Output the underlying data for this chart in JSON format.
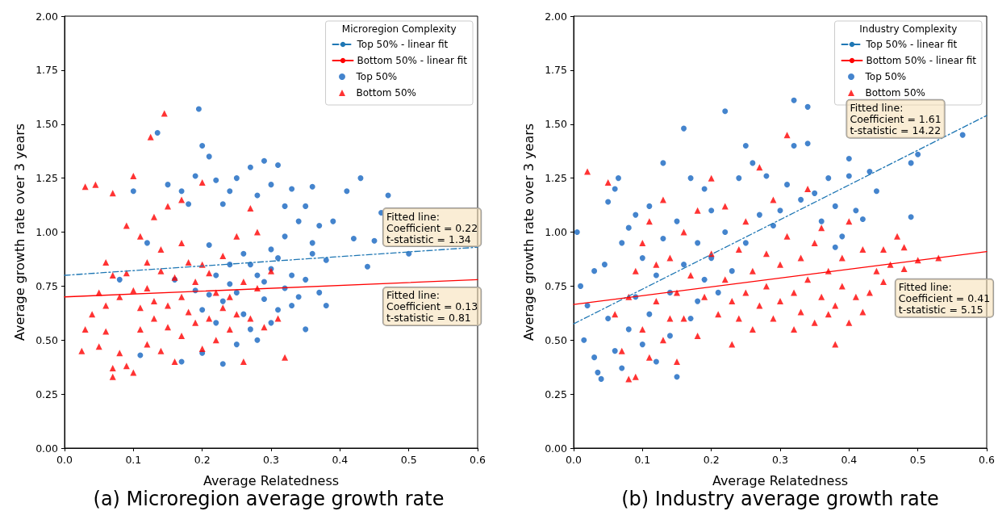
{
  "chart_data": [
    {
      "type": "scatter",
      "title": "(a) Microregion average growth rate",
      "xlabel": "Average Relatedness",
      "ylabel": "Average growth rate over 3 years",
      "legend_title": "Microregion Complexity",
      "legend": "top right",
      "xlim": [
        0,
        0.6
      ],
      "xticks": [
        {
          "value": 0,
          "label": "0.0"
        },
        {
          "value": 0.1,
          "label": "0.1"
        },
        {
          "value": 0.2,
          "label": "0.2"
        },
        {
          "value": 0.3,
          "label": "0.3"
        },
        {
          "value": 0.4,
          "label": "0.4"
        },
        {
          "value": 0.5,
          "label": "0.5"
        },
        {
          "value": 0.6,
          "label": "0.6"
        }
      ],
      "ylim": [
        0,
        2
      ],
      "yticks": [
        {
          "value": 0,
          "label": "0.00"
        },
        {
          "value": 0.25,
          "label": "0.25"
        },
        {
          "value": 0.5,
          "label": "0.50"
        },
        {
          "value": 0.75,
          "label": "0.75"
        },
        {
          "value": 1,
          "label": "1.00"
        },
        {
          "value": 1.25,
          "label": "1.25"
        },
        {
          "value": 1.5,
          "label": "1.50"
        },
        {
          "value": 1.75,
          "label": "1.75"
        },
        {
          "value": 2,
          "label": "2.00"
        }
      ],
      "annotations": [
        "Fitted line:\nCoefficient = 0.22\nt-statistic = 1.34",
        "Fitted line:\nCoefficient = 0.13\nt-statistic = 0.81"
      ],
      "series": [
        {
          "name": "Top 50% - linear fit",
          "type": "line",
          "color": "#1f77b4",
          "line_style": "dashed",
          "marker": "none",
          "x": [
            0,
            0.6
          ],
          "values": [
            0.8,
            0.93
          ]
        },
        {
          "name": "Bottom 50% - linear fit",
          "type": "line",
          "color": "#ff0000",
          "line_style": "solid",
          "marker": "none",
          "x": [
            0,
            0.6
          ],
          "values": [
            0.7,
            0.78
          ]
        },
        {
          "name": "Top 50%",
          "type": "scatter",
          "color": "#1565c0",
          "marker": "circle",
          "x": [
            0.1,
            0.135,
            0.195,
            0.2,
            0.21,
            0.19,
            0.15,
            0.17,
            0.22,
            0.18,
            0.12,
            0.08,
            0.11,
            0.16,
            0.17,
            0.2,
            0.21,
            0.23,
            0.24,
            0.25,
            0.27,
            0.28,
            0.29,
            0.31,
            0.3,
            0.32,
            0.33,
            0.35,
            0.36,
            0.34,
            0.37,
            0.39,
            0.41,
            0.43,
            0.47,
            0.46,
            0.44,
            0.5,
            0.45,
            0.42,
            0.38,
            0.26,
            0.27,
            0.28,
            0.29,
            0.3,
            0.31,
            0.32,
            0.33,
            0.34,
            0.35,
            0.36,
            0.37,
            0.38,
            0.25,
            0.26,
            0.24,
            0.23,
            0.22,
            0.2,
            0.21,
            0.19,
            0.27,
            0.28,
            0.3,
            0.31,
            0.33,
            0.35,
            0.25,
            0.23,
            0.3,
            0.32,
            0.29,
            0.24,
            0.36,
            0.22
          ],
          "values": [
            1.19,
            1.46,
            1.57,
            1.4,
            1.35,
            1.26,
            1.22,
            1.19,
            1.24,
            1.13,
            0.95,
            0.78,
            0.43,
            0.78,
            0.4,
            0.44,
            0.94,
            1.13,
            1.19,
            1.25,
            1.3,
            1.17,
            1.33,
            1.31,
            1.22,
            1.12,
            1.2,
            1.12,
            1.21,
            1.05,
            1.03,
            1.05,
            1.19,
            1.25,
            1.17,
            1.09,
            0.84,
            0.9,
            0.96,
            0.97,
            0.87,
            0.9,
            0.85,
            0.8,
            0.77,
            0.83,
            0.88,
            0.74,
            0.8,
            0.7,
            0.78,
            0.9,
            0.72,
            0.66,
            0.72,
            0.62,
            0.76,
            0.68,
            0.58,
            0.64,
            0.71,
            0.73,
            0.55,
            0.5,
            0.58,
            0.64,
            0.66,
            0.55,
            0.48,
            0.39,
            0.92,
            0.98,
            0.69,
            0.85,
            0.95,
            0.8
          ]
        },
        {
          "name": "Bottom 50%",
          "type": "scatter",
          "color": "#ff0000",
          "marker": "triangle",
          "x": [
            0.03,
            0.045,
            0.07,
            0.1,
            0.145,
            0.125,
            0.09,
            0.11,
            0.13,
            0.15,
            0.17,
            0.2,
            0.14,
            0.12,
            0.06,
            0.07,
            0.09,
            0.1,
            0.05,
            0.04,
            0.06,
            0.08,
            0.12,
            0.14,
            0.16,
            0.18,
            0.2,
            0.22,
            0.24,
            0.26,
            0.28,
            0.3,
            0.27,
            0.28,
            0.25,
            0.23,
            0.06,
            0.05,
            0.07,
            0.08,
            0.07,
            0.09,
            0.1,
            0.11,
            0.12,
            0.13,
            0.15,
            0.14,
            0.16,
            0.17,
            0.18,
            0.19,
            0.2,
            0.21,
            0.22,
            0.23,
            0.24,
            0.25,
            0.26,
            0.27,
            0.29,
            0.31,
            0.32,
            0.03,
            0.025,
            0.11,
            0.13,
            0.15,
            0.17,
            0.19,
            0.21,
            0.17
          ],
          "values": [
            1.21,
            1.22,
            1.18,
            1.26,
            1.55,
            1.44,
            1.03,
            0.98,
            1.07,
            1.12,
            1.15,
            1.23,
            0.92,
            0.86,
            0.86,
            0.8,
            0.81,
            0.73,
            0.72,
            0.62,
            0.66,
            0.7,
            0.74,
            0.82,
            0.79,
            0.86,
            0.85,
            0.72,
            0.7,
            0.77,
            0.74,
            0.82,
            1.11,
            1.0,
            0.98,
            0.89,
            0.54,
            0.47,
            0.37,
            0.44,
            0.33,
            0.38,
            0.35,
            0.55,
            0.48,
            0.6,
            0.56,
            0.45,
            0.4,
            0.52,
            0.63,
            0.58,
            0.46,
            0.6,
            0.5,
            0.65,
            0.55,
            0.62,
            0.4,
            0.6,
            0.56,
            0.6,
            0.42,
            0.55,
            0.45,
            0.65,
            0.68,
            0.66,
            0.7,
            0.77,
            0.81,
            0.95
          ]
        }
      ]
    },
    {
      "type": "scatter",
      "title": "(b) Industry average growth rate",
      "xlabel": "Average Relatedness",
      "ylabel": "Average growth rate over 3 years",
      "legend_title": "Industry Complexity",
      "legend": "top right",
      "xlim": [
        0,
        0.6
      ],
      "xticks": [
        {
          "value": 0,
          "label": "0.0"
        },
        {
          "value": 0.1,
          "label": "0.1"
        },
        {
          "value": 0.2,
          "label": "0.2"
        },
        {
          "value": 0.3,
          "label": "0.3"
        },
        {
          "value": 0.4,
          "label": "0.4"
        },
        {
          "value": 0.5,
          "label": "0.5"
        },
        {
          "value": 0.6,
          "label": "0.6"
        }
      ],
      "ylim": [
        0,
        2
      ],
      "yticks": [
        {
          "value": 0,
          "label": "0.00"
        },
        {
          "value": 0.25,
          "label": "0.25"
        },
        {
          "value": 0.5,
          "label": "0.50"
        },
        {
          "value": 0.75,
          "label": "0.75"
        },
        {
          "value": 1,
          "label": "1.00"
        },
        {
          "value": 1.25,
          "label": "1.25"
        },
        {
          "value": 1.5,
          "label": "1.50"
        },
        {
          "value": 1.75,
          "label": "1.75"
        },
        {
          "value": 2,
          "label": "2.00"
        }
      ],
      "annotations": [
        "Fitted line:\nCoefficient = 1.61\nt-statistic = 14.22",
        "Fitted line:\nCoefficient = 0.41\nt-statistic = 5.15"
      ],
      "series": [
        {
          "name": "Top 50% - linear fit",
          "type": "line",
          "color": "#1f77b4",
          "line_style": "dashed",
          "marker": "none",
          "x": [
            0,
            0.6
          ],
          "values": [
            0.575,
            1.54
          ]
        },
        {
          "name": "Bottom 50% - linear fit",
          "type": "line",
          "color": "#ff0000",
          "line_style": "solid",
          "marker": "none",
          "x": [
            0,
            0.6
          ],
          "values": [
            0.665,
            0.91
          ]
        },
        {
          "name": "Top 50%",
          "type": "scatter",
          "color": "#1565c0",
          "marker": "circle",
          "x": [
            0.005,
            0.01,
            0.015,
            0.02,
            0.03,
            0.03,
            0.035,
            0.04,
            0.045,
            0.05,
            0.05,
            0.06,
            0.06,
            0.065,
            0.07,
            0.07,
            0.08,
            0.08,
            0.09,
            0.09,
            0.1,
            0.1,
            0.11,
            0.11,
            0.12,
            0.12,
            0.13,
            0.13,
            0.14,
            0.14,
            0.15,
            0.15,
            0.16,
            0.16,
            0.17,
            0.17,
            0.18,
            0.18,
            0.19,
            0.19,
            0.2,
            0.2,
            0.21,
            0.22,
            0.22,
            0.23,
            0.24,
            0.25,
            0.25,
            0.26,
            0.27,
            0.28,
            0.29,
            0.3,
            0.31,
            0.32,
            0.32,
            0.33,
            0.34,
            0.34,
            0.35,
            0.36,
            0.37,
            0.38,
            0.38,
            0.4,
            0.4,
            0.41,
            0.43,
            0.44,
            0.49,
            0.5,
            0.49,
            0.565,
            0.39,
            0.42
          ],
          "values": [
            1.0,
            0.75,
            0.5,
            0.66,
            0.82,
            0.42,
            0.35,
            0.32,
            0.85,
            1.14,
            0.6,
            1.2,
            0.45,
            1.25,
            0.95,
            0.37,
            1.02,
            0.55,
            1.08,
            0.7,
            0.88,
            0.48,
            1.12,
            0.62,
            0.8,
            0.4,
            1.32,
            0.97,
            0.72,
            0.52,
            1.05,
            0.33,
            1.48,
            0.85,
            1.25,
            0.6,
            0.95,
            0.68,
            1.2,
            0.78,
            1.1,
            0.88,
            0.72,
            1.56,
            1.0,
            0.82,
            1.25,
            1.4,
            0.95,
            1.32,
            1.08,
            1.26,
            1.03,
            1.1,
            1.22,
            1.61,
            1.4,
            1.15,
            1.58,
            1.41,
            1.18,
            1.05,
            1.25,
            1.12,
            0.93,
            1.34,
            1.26,
            1.1,
            1.28,
            1.19,
            1.32,
            1.36,
            1.07,
            1.45,
            0.98,
            1.06
          ]
        },
        {
          "name": "Bottom 50%",
          "type": "scatter",
          "color": "#ff0000",
          "marker": "triangle",
          "x": [
            0.02,
            0.05,
            0.06,
            0.07,
            0.08,
            0.08,
            0.09,
            0.1,
            0.1,
            0.11,
            0.11,
            0.12,
            0.13,
            0.13,
            0.14,
            0.15,
            0.15,
            0.16,
            0.16,
            0.17,
            0.18,
            0.18,
            0.19,
            0.2,
            0.2,
            0.21,
            0.22,
            0.22,
            0.23,
            0.23,
            0.24,
            0.24,
            0.25,
            0.25,
            0.26,
            0.26,
            0.27,
            0.27,
            0.28,
            0.28,
            0.29,
            0.29,
            0.3,
            0.3,
            0.31,
            0.31,
            0.32,
            0.32,
            0.33,
            0.33,
            0.34,
            0.34,
            0.35,
            0.35,
            0.36,
            0.36,
            0.37,
            0.37,
            0.38,
            0.38,
            0.39,
            0.39,
            0.4,
            0.4,
            0.41,
            0.42,
            0.42,
            0.43,
            0.44,
            0.45,
            0.46,
            0.47,
            0.48,
            0.48,
            0.5,
            0.53,
            0.45,
            0.12,
            0.14,
            0.09
          ],
          "values": [
            1.28,
            1.23,
            0.62,
            0.45,
            0.7,
            0.32,
            0.82,
            0.55,
            0.95,
            1.05,
            0.42,
            0.68,
            1.15,
            0.5,
            0.88,
            0.72,
            0.4,
            1.0,
            0.6,
            0.8,
            1.1,
            0.52,
            0.7,
            1.25,
            0.9,
            0.62,
            0.78,
            1.12,
            0.68,
            0.48,
            0.92,
            0.6,
            1.05,
            0.72,
            0.82,
            0.55,
            1.3,
            0.66,
            0.9,
            0.75,
            1.15,
            0.6,
            0.85,
            0.68,
            1.45,
            0.98,
            0.72,
            0.55,
            0.88,
            0.63,
            1.2,
            0.78,
            0.95,
            0.58,
            0.7,
            1.02,
            0.82,
            0.62,
            0.66,
            0.48,
            0.88,
            0.75,
            1.05,
            0.58,
            0.7,
            0.92,
            0.63,
            0.72,
            0.82,
            0.92,
            0.85,
            0.98,
            0.93,
            0.83,
            0.87,
            0.88,
            0.77,
            0.85,
            0.6,
            0.33
          ]
        }
      ]
    }
  ]
}
